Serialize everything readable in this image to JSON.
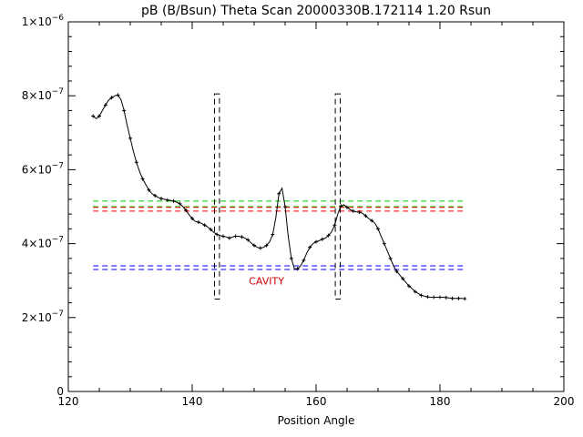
{
  "chart_data": {
    "type": "line",
    "title": "pB (B/Bsun) Theta Scan 20000330B.172114 1.20 Rsun",
    "xlabel": "Position Angle",
    "ylabel": "",
    "xlim": [
      120,
      200
    ],
    "ylim": [
      0,
      1e-06
    ],
    "x_ticks": [
      120,
      140,
      160,
      180,
      200
    ],
    "y_ticks": [
      {
        "value": 0,
        "mant": "0",
        "exp": ""
      },
      {
        "value": 2e-07,
        "mant": "2×10",
        "exp": "−7"
      },
      {
        "value": 4e-07,
        "mant": "4×10",
        "exp": "−7"
      },
      {
        "value": 6e-07,
        "mant": "6×10",
        "exp": "−7"
      },
      {
        "value": 8e-07,
        "mant": "8×10",
        "exp": "−7"
      },
      {
        "value": 1e-06,
        "mant": "1×10",
        "exp": "−6"
      }
    ],
    "series": [
      {
        "color": "#000000",
        "x": [
          124.0,
          124.5,
          125.0,
          125.5,
          126.0,
          126.5,
          127.0,
          127.5,
          128.0,
          128.5,
          129.0,
          129.5,
          130.0,
          130.5,
          131.0,
          131.5,
          132.0,
          132.5,
          133.0,
          133.5,
          134.0,
          134.5,
          135.0,
          135.5,
          136.0,
          136.5,
          137.0,
          137.5,
          138.0,
          138.5,
          139.0,
          139.5,
          140.0,
          140.5,
          141.0,
          141.5,
          142.0,
          142.5,
          143.0,
          143.5,
          144.0,
          144.5,
          145.0,
          145.5,
          146.0,
          146.5,
          147.0,
          147.5,
          148.0,
          148.5,
          149.0,
          149.5,
          150.0,
          150.5,
          151.0,
          151.5,
          152.0,
          152.5,
          153.0,
          153.5,
          154.0,
          154.5,
          155.0,
          155.5,
          156.0,
          156.5,
          157.0,
          157.5,
          158.0,
          158.5,
          159.0,
          159.5,
          160.0,
          160.5,
          161.0,
          161.5,
          162.0,
          162.5,
          163.0,
          163.5,
          164.0,
          164.5,
          165.0,
          165.5,
          166.0,
          166.5,
          167.0,
          167.5,
          168.0,
          168.5,
          169.0,
          169.5,
          170.0,
          170.5,
          171.0,
          171.5,
          172.0,
          172.5,
          173.0,
          173.5,
          174.0,
          174.5,
          175.0,
          175.5,
          176.0,
          176.5,
          177.0,
          177.5,
          178.0,
          178.5,
          179.0,
          179.5,
          180.0,
          180.5,
          181.0,
          181.5,
          182.0,
          182.5,
          183.0,
          183.5,
          184.0
        ],
        "y": [
          7.45e-07,
          7.38e-07,
          7.45e-07,
          7.6e-07,
          7.75e-07,
          7.88e-07,
          7.95e-07,
          8e-07,
          8.02e-07,
          7.9e-07,
          7.6e-07,
          7.2e-07,
          6.85e-07,
          6.5e-07,
          6.2e-07,
          5.95e-07,
          5.75e-07,
          5.6e-07,
          5.45e-07,
          5.35e-07,
          5.3e-07,
          5.25e-07,
          5.22e-07,
          5.2e-07,
          5.18e-07,
          5.17e-07,
          5.15e-07,
          5.12e-07,
          5.08e-07,
          5e-07,
          4.9e-07,
          4.78e-07,
          4.68e-07,
          4.6e-07,
          4.58e-07,
          4.55e-07,
          4.5e-07,
          4.45e-07,
          4.38e-07,
          4.3e-07,
          4.25e-07,
          4.22e-07,
          4.2e-07,
          4.18e-07,
          4.15e-07,
          4.18e-07,
          4.2e-07,
          4.2e-07,
          4.18e-07,
          4.15e-07,
          4.1e-07,
          4.02e-07,
          3.95e-07,
          3.9e-07,
          3.88e-07,
          3.9e-07,
          3.95e-07,
          4.05e-07,
          4.25e-07,
          4.7e-07,
          5.35e-07,
          5.5e-07,
          5e-07,
          4.2e-07,
          3.6e-07,
          3.32e-07,
          3.32e-07,
          3.4e-07,
          3.55e-07,
          3.75e-07,
          3.9e-07,
          4e-07,
          4.05e-07,
          4.08e-07,
          4.12e-07,
          4.15e-07,
          4.22e-07,
          4.32e-07,
          4.5e-07,
          4.8e-07,
          5.02e-07,
          5.05e-07,
          4.98e-07,
          4.92e-07,
          4.88e-07,
          4.86e-07,
          4.85e-07,
          4.82e-07,
          4.75e-07,
          4.68e-07,
          4.62e-07,
          4.55e-07,
          4.4e-07,
          4.2e-07,
          4e-07,
          3.8e-07,
          3.6e-07,
          3.4e-07,
          3.25e-07,
          3.15e-07,
          3.05e-07,
          2.95e-07,
          2.85e-07,
          2.78e-07,
          2.7e-07,
          2.65e-07,
          2.6e-07,
          2.58e-07,
          2.56e-07,
          2.55e-07,
          2.55e-07,
          2.55e-07,
          2.55e-07,
          2.55e-07,
          2.54e-07,
          2.53e-07,
          2.52e-07,
          2.52e-07,
          2.52e-07,
          2.52e-07,
          2.51e-07
        ]
      }
    ],
    "hlines": [
      {
        "y": 5.15e-07,
        "color": "#00cc00"
      },
      {
        "y": 5e-07,
        "color": "#00cc00"
      },
      {
        "y": 4.98e-07,
        "color": "#ff0000"
      },
      {
        "y": 4.88e-07,
        "color": "#ff0000"
      },
      {
        "y": 3.4e-07,
        "color": "#0000ff"
      },
      {
        "y": 3.3e-07,
        "color": "#0000ff"
      }
    ],
    "hline_xrange": [
      124,
      184
    ],
    "boxes": [
      {
        "x0": 143.6,
        "x1": 144.4,
        "y0": 2.5e-07,
        "y1": 8.05e-07
      },
      {
        "x0": 163.1,
        "x1": 163.9,
        "y0": 2.5e-07,
        "y1": 8.05e-07
      }
    ],
    "annotation": {
      "text": "CAVITY",
      "x": 152,
      "y": 2.9e-07,
      "color": "#cc0000"
    }
  }
}
